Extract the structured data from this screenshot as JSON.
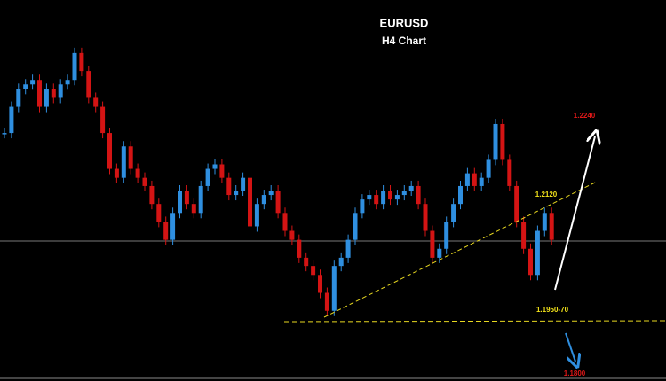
{
  "chart_data": {
    "type": "candlestick",
    "title": "EURUSD",
    "subtitle": "H4 Chart",
    "values": [
      1.2202,
      1.2237,
      1.2261,
      1.2267,
      1.2273,
      1.2237,
      1.2261,
      1.2249,
      1.2267,
      1.2273,
      1.2309,
      1.2285,
      1.2249,
      1.2237,
      1.2202,
      1.2154,
      1.2142,
      1.2184,
      1.2154,
      1.2142,
      1.2131,
      1.2107,
      1.2083,
      1.2059,
      1.2095,
      1.2125,
      1.2107,
      1.2095,
      1.2131,
      1.2154,
      1.216,
      1.2142,
      1.2119,
      1.2125,
      1.2142,
      1.2077,
      1.2107,
      1.2119,
      1.2125,
      1.2095,
      1.2071,
      1.2059,
      1.2035,
      1.2024,
      1.2012,
      1.1988,
      1.1964,
      1.2024,
      1.2035,
      1.2059,
      1.2095,
      1.2113,
      1.2119,
      1.2107,
      1.2125,
      1.2113,
      1.2119,
      1.2125,
      1.2131,
      1.2107,
      1.2071,
      1.2035,
      1.2047,
      1.2083,
      1.2107,
      1.2131,
      1.2148,
      1.2131,
      1.2142,
      1.2166,
      1.2214,
      1.2166,
      1.2131,
      1.2083,
      1.2047,
      1.2012,
      1.2071,
      1.2095,
      1.2059
    ],
    "ylim": [
      1.187,
      1.238
    ],
    "up_color": "#2f8fe0",
    "down_color": "#d41414",
    "annotations": [
      {
        "text": "1.2240",
        "color": "#e01818"
      },
      {
        "text": "1.2120",
        "color": "#f2e21a"
      },
      {
        "text": "1.1950-70",
        "color": "#f2e21a"
      },
      {
        "text": "1.1800",
        "color": "#e01818"
      }
    ]
  }
}
